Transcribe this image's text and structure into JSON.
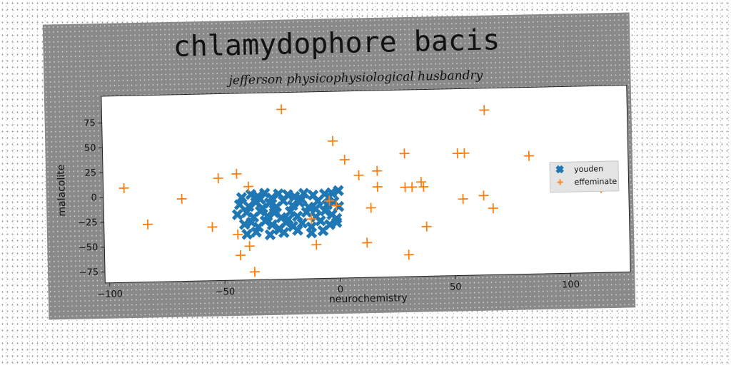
{
  "chart_data": {
    "type": "scatter",
    "title": "chlamydophore bacis",
    "subtitle": "jefferson physicophysiological husbandry",
    "xlabel": "neurochemistry",
    "ylabel": "malacolite",
    "xlim": [
      -102,
      126
    ],
    "ylim": [
      -86,
      102
    ],
    "xticks": [
      -100,
      -50,
      0,
      50,
      100
    ],
    "yticks": [
      -75,
      -50,
      -25,
      0,
      25,
      50,
      75
    ],
    "grid": false,
    "legend_position": "right",
    "series": [
      {
        "name": "youden",
        "marker": "x-thick",
        "color": "#1f77b4",
        "points": [
          [
            -42,
            -3
          ],
          [
            -38,
            0
          ],
          [
            -35,
            -2
          ],
          [
            -32,
            1
          ],
          [
            -29,
            -4
          ],
          [
            -26,
            0
          ],
          [
            -22,
            -1
          ],
          [
            -19,
            -3
          ],
          [
            -15,
            0
          ],
          [
            -11,
            -2
          ],
          [
            -6,
            -1
          ],
          [
            -3,
            0
          ],
          [
            0,
            2
          ],
          [
            -43,
            -10
          ],
          [
            -39,
            -12
          ],
          [
            -36,
            -8
          ],
          [
            -33,
            -14
          ],
          [
            -30,
            -9
          ],
          [
            -27,
            -13
          ],
          [
            -24,
            -7
          ],
          [
            -20,
            -12
          ],
          [
            -17,
            -9
          ],
          [
            -13,
            -14
          ],
          [
            -9,
            -8
          ],
          [
            -5,
            -12
          ],
          [
            -2,
            -9
          ],
          [
            0,
            -14
          ],
          [
            -44,
            -20
          ],
          [
            -40,
            -18
          ],
          [
            -37,
            -23
          ],
          [
            -34,
            -17
          ],
          [
            -31,
            -22
          ],
          [
            -28,
            -19
          ],
          [
            -25,
            -24
          ],
          [
            -21,
            -18
          ],
          [
            -18,
            -23
          ],
          [
            -14,
            -19
          ],
          [
            -10,
            -24
          ],
          [
            -6,
            -18
          ],
          [
            -3,
            -22
          ],
          [
            -1,
            -26
          ],
          [
            -41,
            -30
          ],
          [
            -38,
            -28
          ],
          [
            -35,
            -33
          ],
          [
            -32,
            -27
          ],
          [
            -29,
            -31
          ],
          [
            -26,
            -35
          ],
          [
            -23,
            -29
          ],
          [
            -20,
            -33
          ],
          [
            -16,
            -30
          ],
          [
            -12,
            -34
          ],
          [
            -8,
            -28
          ],
          [
            -4,
            -32
          ],
          [
            -1,
            -30
          ],
          [
            -40,
            -40
          ],
          [
            -36,
            -38
          ],
          [
            -30,
            -41
          ],
          [
            -24,
            -39
          ],
          [
            -18,
            -37
          ],
          [
            -12,
            -40
          ],
          [
            -7,
            -38
          ],
          [
            -34,
            -5
          ],
          [
            -28,
            -16
          ],
          [
            -22,
            -26
          ],
          [
            -16,
            -6
          ],
          [
            -10,
            -16
          ],
          [
            -4,
            -4
          ],
          [
            -26,
            -36
          ]
        ]
      },
      {
        "name": "effeminate",
        "marker": "plus",
        "color": "#ff7f0e",
        "points": [
          [
            -93,
            9
          ],
          [
            -83,
            -28
          ],
          [
            -68,
            -3
          ],
          [
            -55,
            -32
          ],
          [
            -52,
            17
          ],
          [
            -44,
            -40
          ],
          [
            -44,
            21
          ],
          [
            -39,
            8
          ],
          [
            -39,
            -52
          ],
          [
            -37,
            -78
          ],
          [
            -43,
            -61
          ],
          [
            -24,
            85
          ],
          [
            -2,
            52
          ],
          [
            3,
            33
          ],
          [
            9,
            17
          ],
          [
            17,
            21
          ],
          [
            17,
            5
          ],
          [
            14,
            -16
          ],
          [
            12,
            -51
          ],
          [
            -10,
            -52
          ],
          [
            -1,
            -13
          ],
          [
            -4,
            -8
          ],
          [
            -12,
            -26
          ],
          [
            29,
            38
          ],
          [
            29,
            4
          ],
          [
            32,
            4
          ],
          [
            36,
            9
          ],
          [
            37,
            4
          ],
          [
            38,
            -36
          ],
          [
            30,
            -64
          ],
          [
            52,
            37
          ],
          [
            55,
            37
          ],
          [
            54,
            -9
          ],
          [
            63,
            -6
          ],
          [
            67,
            -19
          ],
          [
            64,
            80
          ],
          [
            83,
            33
          ],
          [
            114,
            -1
          ]
        ]
      }
    ]
  }
}
